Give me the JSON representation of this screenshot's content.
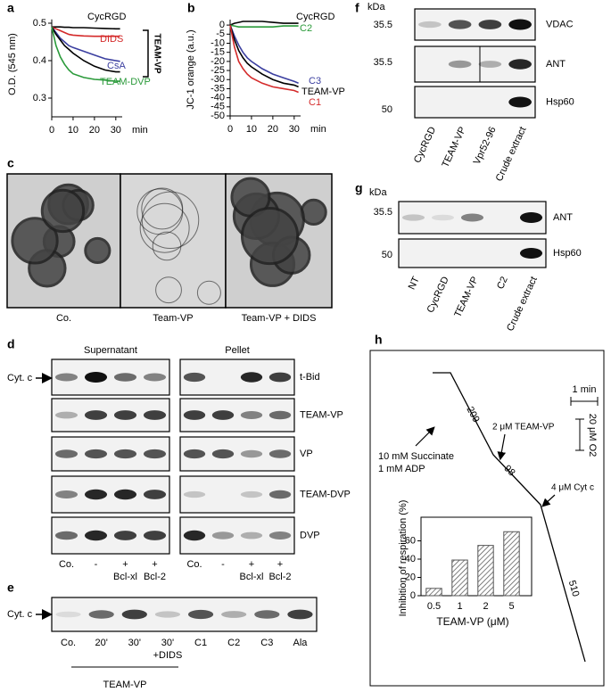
{
  "panel_labels": [
    "a",
    "b",
    "c",
    "d",
    "e",
    "f",
    "g",
    "h"
  ],
  "chart_data": [
    {
      "type": "line",
      "y_label": "O.D. (545 nm)",
      "x_label": "min",
      "x": [
        0,
        2,
        4,
        6,
        8,
        10,
        15,
        20,
        25,
        30,
        32
      ],
      "xlim": [
        0,
        33
      ],
      "xticks": [
        0,
        10,
        20,
        30
      ],
      "ylim": [
        0.25,
        0.51
      ],
      "yticks": [
        0.3,
        0.4,
        0.5
      ],
      "series": [
        {
          "name": "CycRGD",
          "color": "#000000",
          "values": [
            0.49,
            0.49,
            0.49,
            0.489,
            0.489,
            0.488,
            0.488,
            0.487,
            0.486,
            0.485,
            0.485
          ]
        },
        {
          "name": "DIDS",
          "color": "#d42a2a",
          "values": [
            0.49,
            0.485,
            0.48,
            0.475,
            0.47,
            0.468,
            0.466,
            0.465,
            0.465,
            0.465,
            0.465
          ]
        },
        {
          "name": "CsA",
          "color": "#3b3fa0",
          "values": [
            0.49,
            0.475,
            0.46,
            0.45,
            0.44,
            0.435,
            0.425,
            0.415,
            0.405,
            0.4,
            0.398
          ]
        },
        {
          "name": "TEAM-VP",
          "color": "#000000",
          "values": [
            0.49,
            0.47,
            0.455,
            0.44,
            0.43,
            0.42,
            0.4,
            0.385,
            0.375,
            0.37,
            0.37
          ]
        },
        {
          "name": "TEAM-DVP",
          "color": "#2a9a3a",
          "values": [
            0.49,
            0.44,
            0.41,
            0.39,
            0.375,
            0.365,
            0.355,
            0.35,
            0.348,
            0.345,
            0.345
          ]
        }
      ]
    },
    {
      "type": "line",
      "y_label": "JC-1 orange (a.u.)",
      "x_label": "min",
      "x": [
        0,
        2,
        4,
        6,
        8,
        10,
        15,
        20,
        25,
        30,
        32
      ],
      "xlim": [
        0,
        33
      ],
      "xticks": [
        0,
        10,
        20,
        30
      ],
      "ylim": [
        -50,
        3
      ],
      "yticks": [
        0,
        -5,
        -10,
        -15,
        -20,
        -25,
        -30,
        -35,
        -40,
        -45,
        -50
      ],
      "series": [
        {
          "name": "CycRGD",
          "color": "#000000",
          "values": [
            0,
            1,
            1.5,
            2,
            2,
            2,
            2,
            1.5,
            1,
            1,
            1
          ]
        },
        {
          "name": "C2",
          "color": "#2a9a3a",
          "values": [
            0,
            -0.5,
            -1,
            -1,
            -1,
            -1,
            -1,
            -1,
            -0.5,
            -0.5,
            -0.5
          ]
        },
        {
          "name": "C3",
          "color": "#3b3fa0",
          "values": [
            0,
            -6,
            -11,
            -15,
            -18,
            -20,
            -24,
            -27,
            -29,
            -31,
            -32
          ]
        },
        {
          "name": "TEAM-VP",
          "color": "#000000",
          "values": [
            0,
            -8,
            -14,
            -18,
            -21,
            -23,
            -27,
            -30,
            -32,
            -33,
            -34
          ]
        },
        {
          "name": "C1",
          "color": "#d42a2a",
          "values": [
            0,
            -12,
            -20,
            -24,
            -27,
            -29,
            -32,
            -34,
            -35,
            -36,
            -37
          ]
        }
      ]
    },
    {
      "type": "bar",
      "y_label": "Inhibition of respiration (%)",
      "x_label": "TEAM-VP (μM)",
      "categories": [
        "0.5",
        "1",
        "2",
        "5"
      ],
      "values": [
        8,
        39,
        55,
        70
      ],
      "color": "#555555",
      "ylim": [
        0,
        80
      ],
      "yticks": [
        0,
        20,
        40,
        60
      ]
    }
  ],
  "panel_c": {
    "labels": [
      "Co.",
      "Team-VP",
      "Team-VP + DIDS"
    ]
  },
  "panel_d": {
    "headers": [
      "Supernatant",
      "Pellet"
    ],
    "marker": "Cyt. c",
    "rows": [
      "t-Bid",
      "TEAM-VP",
      "VP",
      "TEAM-DVP",
      "DVP"
    ],
    "lanes": [
      "Co.",
      "-",
      "+",
      "+"
    ],
    "lanes_sub": [
      "Bcl-xl",
      "Bcl-2"
    ]
  },
  "panel_e": {
    "marker": "Cyt. c",
    "lanes": [
      "Co.",
      "20'",
      "30'",
      "30'",
      "C1",
      "C2",
      "C3",
      "Ala"
    ],
    "note": "+DIDS",
    "group": "TEAM-VP"
  },
  "panel_f": {
    "unit": "kDa",
    "markers": [
      "35.5",
      "35.5",
      "50"
    ],
    "rows": [
      "VDAC",
      "ANT",
      "Hsp60"
    ],
    "lanes": [
      "CycRGD",
      "TEAM-VP",
      "Vpr52-96",
      "Crude extract"
    ]
  },
  "panel_g": {
    "unit": "kDa",
    "markers": [
      "35.5",
      "50"
    ],
    "rows": [
      "ANT",
      "Hsp60"
    ],
    "lanes": [
      "NT",
      "CycRGD",
      "TEAM-VP",
      "C2",
      "Crude extract"
    ]
  },
  "panel_h": {
    "scale_time": "1 min",
    "scale_o2": "20 μM O2",
    "additions": [
      "10 mM Succinate",
      "1 mM ADP",
      "2 μM TEAM-VP",
      "4 μM Cyt c"
    ],
    "rates": [
      "209",
      "98",
      "510"
    ]
  }
}
